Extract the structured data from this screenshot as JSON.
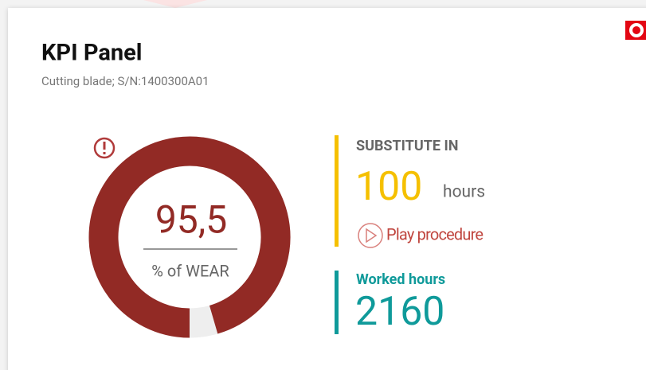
{
  "header": {
    "title": "KPI Panel",
    "subtitle": "Cutting blade; S/N:1400300A01"
  },
  "gauge": {
    "wear": {
      "value": 95.5,
      "label": "95,5"
    },
    "caption": "% of WEAR",
    "max": 100
  },
  "substitute": {
    "label": "SUBSTITUTE IN",
    "value": "100",
    "unit": "hours",
    "action": "Play procedure"
  },
  "worked": {
    "label": "Worked hours",
    "value": "2160"
  }
}
